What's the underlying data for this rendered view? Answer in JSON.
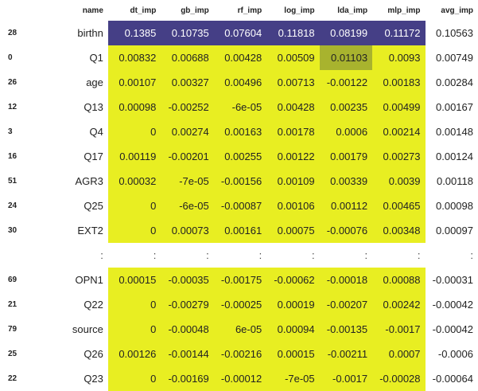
{
  "columns": [
    "name",
    "dt_imp",
    "gb_imp",
    "rf_imp",
    "log_imp",
    "lda_imp",
    "mlp_imp",
    "avg_imp"
  ],
  "rows_top": [
    {
      "idx": "28",
      "name": "birthn",
      "dt": "0.1385",
      "gb": "0.10735",
      "rf": "0.07604",
      "log": "0.11818",
      "lda": "0.08199",
      "mlp": "0.11172",
      "avg": "0.10563"
    },
    {
      "idx": "0",
      "name": "Q1",
      "dt": "0.00832",
      "gb": "0.00688",
      "rf": "0.00428",
      "log": "0.00509",
      "lda": "0.01103",
      "mlp": "0.0093",
      "avg": "0.00749"
    },
    {
      "idx": "26",
      "name": "age",
      "dt": "0.00107",
      "gb": "0.00327",
      "rf": "0.00496",
      "log": "0.00713",
      "lda": "-0.00122",
      "mlp": "0.00183",
      "avg": "0.00284"
    },
    {
      "idx": "12",
      "name": "Q13",
      "dt": "0.00098",
      "gb": "-0.00252",
      "rf": "-6e-05",
      "log": "0.00428",
      "lda": "0.00235",
      "mlp": "0.00499",
      "avg": "0.00167"
    },
    {
      "idx": "3",
      "name": "Q4",
      "dt": "0",
      "gb": "0.00274",
      "rf": "0.00163",
      "log": "0.00178",
      "lda": "0.0006",
      "mlp": "0.00214",
      "avg": "0.00148"
    },
    {
      "idx": "16",
      "name": "Q17",
      "dt": "0.00119",
      "gb": "-0.00201",
      "rf": "0.00255",
      "log": "0.00122",
      "lda": "0.00179",
      "mlp": "0.00273",
      "avg": "0.00124"
    },
    {
      "idx": "51",
      "name": "AGR3",
      "dt": "0.00032",
      "gb": "-7e-05",
      "rf": "-0.00156",
      "log": "0.00109",
      "lda": "0.00339",
      "mlp": "0.0039",
      "avg": "0.00118"
    },
    {
      "idx": "24",
      "name": "Q25",
      "dt": "0",
      "gb": "-6e-05",
      "rf": "-0.00087",
      "log": "0.00106",
      "lda": "0.00112",
      "mlp": "0.00465",
      "avg": "0.00098"
    },
    {
      "idx": "30",
      "name": "EXT2",
      "dt": "0",
      "gb": "0.00073",
      "rf": "0.00161",
      "log": "0.00075",
      "lda": "-0.00076",
      "mlp": "0.00348",
      "avg": "0.00097"
    }
  ],
  "ellipsis": ":",
  "rows_bottom": [
    {
      "idx": "69",
      "name": "OPN1",
      "dt": "0.00015",
      "gb": "-0.00035",
      "rf": "-0.00175",
      "log": "-0.00062",
      "lda": "-0.00018",
      "mlp": "0.00088",
      "avg": "-0.00031"
    },
    {
      "idx": "21",
      "name": "Q22",
      "dt": "0",
      "gb": "-0.00279",
      "rf": "-0.00025",
      "log": "0.00019",
      "lda": "-0.00207",
      "mlp": "0.00242",
      "avg": "-0.00042"
    },
    {
      "idx": "79",
      "name": "source",
      "dt": "0",
      "gb": "-0.00048",
      "rf": "6e-05",
      "log": "0.00094",
      "lda": "-0.00135",
      "mlp": "-0.0017",
      "avg": "-0.00042"
    },
    {
      "idx": "25",
      "name": "Q26",
      "dt": "0.00126",
      "gb": "-0.00144",
      "rf": "-0.00216",
      "log": "0.00015",
      "lda": "-0.00211",
      "mlp": "0.0007",
      "avg": "-0.0006"
    },
    {
      "idx": "22",
      "name": "Q23",
      "dt": "0",
      "gb": "-0.00169",
      "rf": "-0.00012",
      "log": "-7e-05",
      "lda": "-0.0017",
      "mlp": "-0.00028",
      "avg": "-0.00064"
    }
  ],
  "colors": {
    "highlight_dark": "#453f86",
    "highlight_yellow": "#e8ee22",
    "highlight_olive": "#a8b32e"
  }
}
